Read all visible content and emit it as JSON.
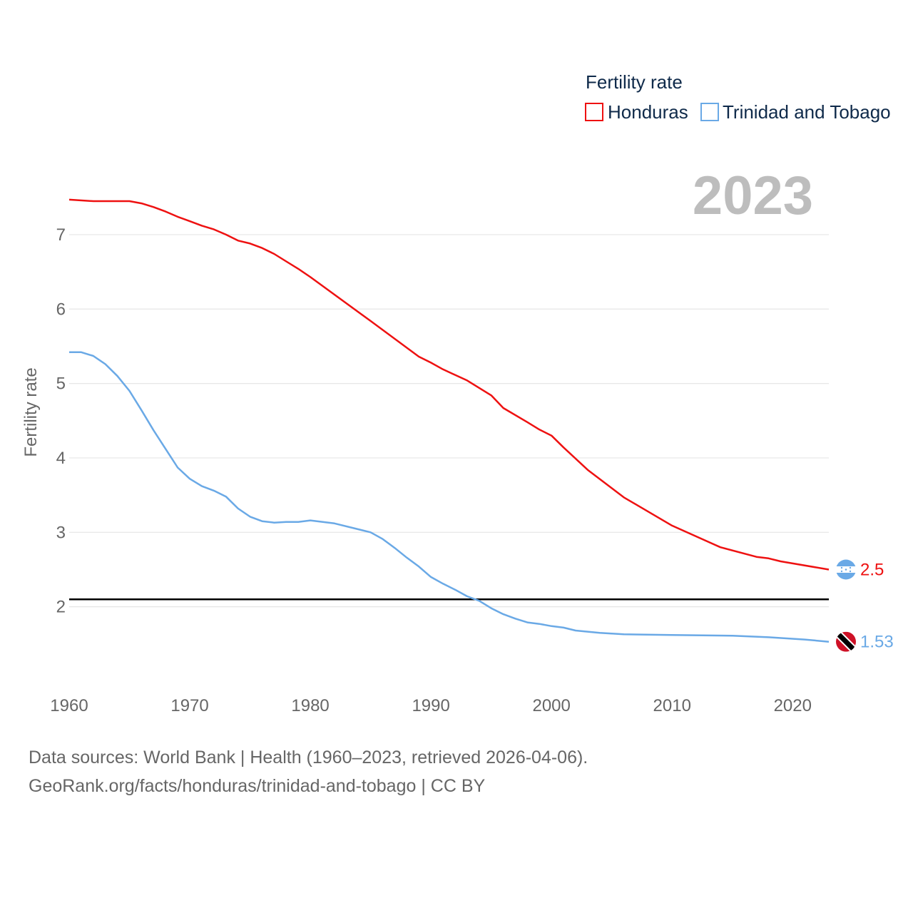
{
  "chart_data": {
    "type": "line",
    "title": "Fertility rate",
    "ylabel": "Fertility rate",
    "xlabel": "",
    "current_year_label": "2023",
    "xlim": [
      1960,
      2023
    ],
    "ylim": [
      1.0,
      7.9
    ],
    "x_ticks": [
      1960,
      1970,
      1980,
      1990,
      2000,
      2010,
      2020
    ],
    "y_ticks": [
      2,
      3,
      4,
      5,
      6,
      7
    ],
    "reference_line": {
      "y": 2.1,
      "color": "#000000"
    },
    "legend": {
      "title": "Fertility rate",
      "placement": "top-right"
    },
    "series": [
      {
        "name": "Honduras",
        "color": "#ee1111",
        "end_label": "2.5",
        "flag": "honduras-flag",
        "x": [
          1960,
          1962,
          1965,
          1966,
          1967,
          1968,
          1969,
          1970,
          1971,
          1972,
          1973,
          1974,
          1975,
          1976,
          1977,
          1978,
          1979,
          1980,
          1985,
          1989,
          1990,
          1991,
          1993,
          1995,
          1996,
          1998,
          1999,
          2000,
          2001,
          2003,
          2006,
          2010,
          2014,
          2017,
          2018,
          2019,
          2023
        ],
        "values": [
          7.47,
          7.45,
          7.45,
          7.42,
          7.37,
          7.31,
          7.24,
          7.18,
          7.12,
          7.07,
          7.0,
          6.92,
          6.88,
          6.82,
          6.74,
          6.64,
          6.54,
          6.43,
          5.84,
          5.36,
          5.28,
          5.19,
          5.04,
          4.84,
          4.67,
          4.48,
          4.38,
          4.3,
          4.14,
          3.84,
          3.47,
          3.09,
          2.8,
          2.67,
          2.65,
          2.61,
          2.5
        ]
      },
      {
        "name": "Trinidad and Tobago",
        "color": "#6aa9e6",
        "end_label": "1.53",
        "flag": "trinidad-and-tobago-flag",
        "x": [
          1960,
          1961,
          1962,
          1963,
          1964,
          1965,
          1966,
          1967,
          1968,
          1969,
          1970,
          1971,
          1972,
          1973,
          1974,
          1975,
          1976,
          1977,
          1978,
          1979,
          1980,
          1982,
          1984,
          1985,
          1986,
          1987,
          1988,
          1989,
          1990,
          1991,
          1992,
          1993,
          1994,
          1995,
          1996,
          1997,
          1998,
          1999,
          2000,
          2001,
          2002,
          2004,
          2006,
          2010,
          2015,
          2018,
          2021,
          2023
        ],
        "values": [
          5.42,
          5.42,
          5.37,
          5.26,
          5.1,
          4.9,
          4.64,
          4.37,
          4.12,
          3.87,
          3.72,
          3.62,
          3.56,
          3.48,
          3.32,
          3.21,
          3.15,
          3.13,
          3.14,
          3.14,
          3.16,
          3.12,
          3.04,
          3.0,
          2.91,
          2.79,
          2.66,
          2.54,
          2.4,
          2.31,
          2.23,
          2.14,
          2.08,
          1.98,
          1.9,
          1.84,
          1.79,
          1.77,
          1.74,
          1.72,
          1.68,
          1.65,
          1.63,
          1.62,
          1.61,
          1.59,
          1.56,
          1.53
        ]
      }
    ]
  },
  "footer": {
    "line1": "Data sources: World Bank | Health (1960–2023, retrieved 2026-04-06).",
    "line2": "GeoRank.org/facts/honduras/trinidad-and-tobago | CC BY"
  }
}
